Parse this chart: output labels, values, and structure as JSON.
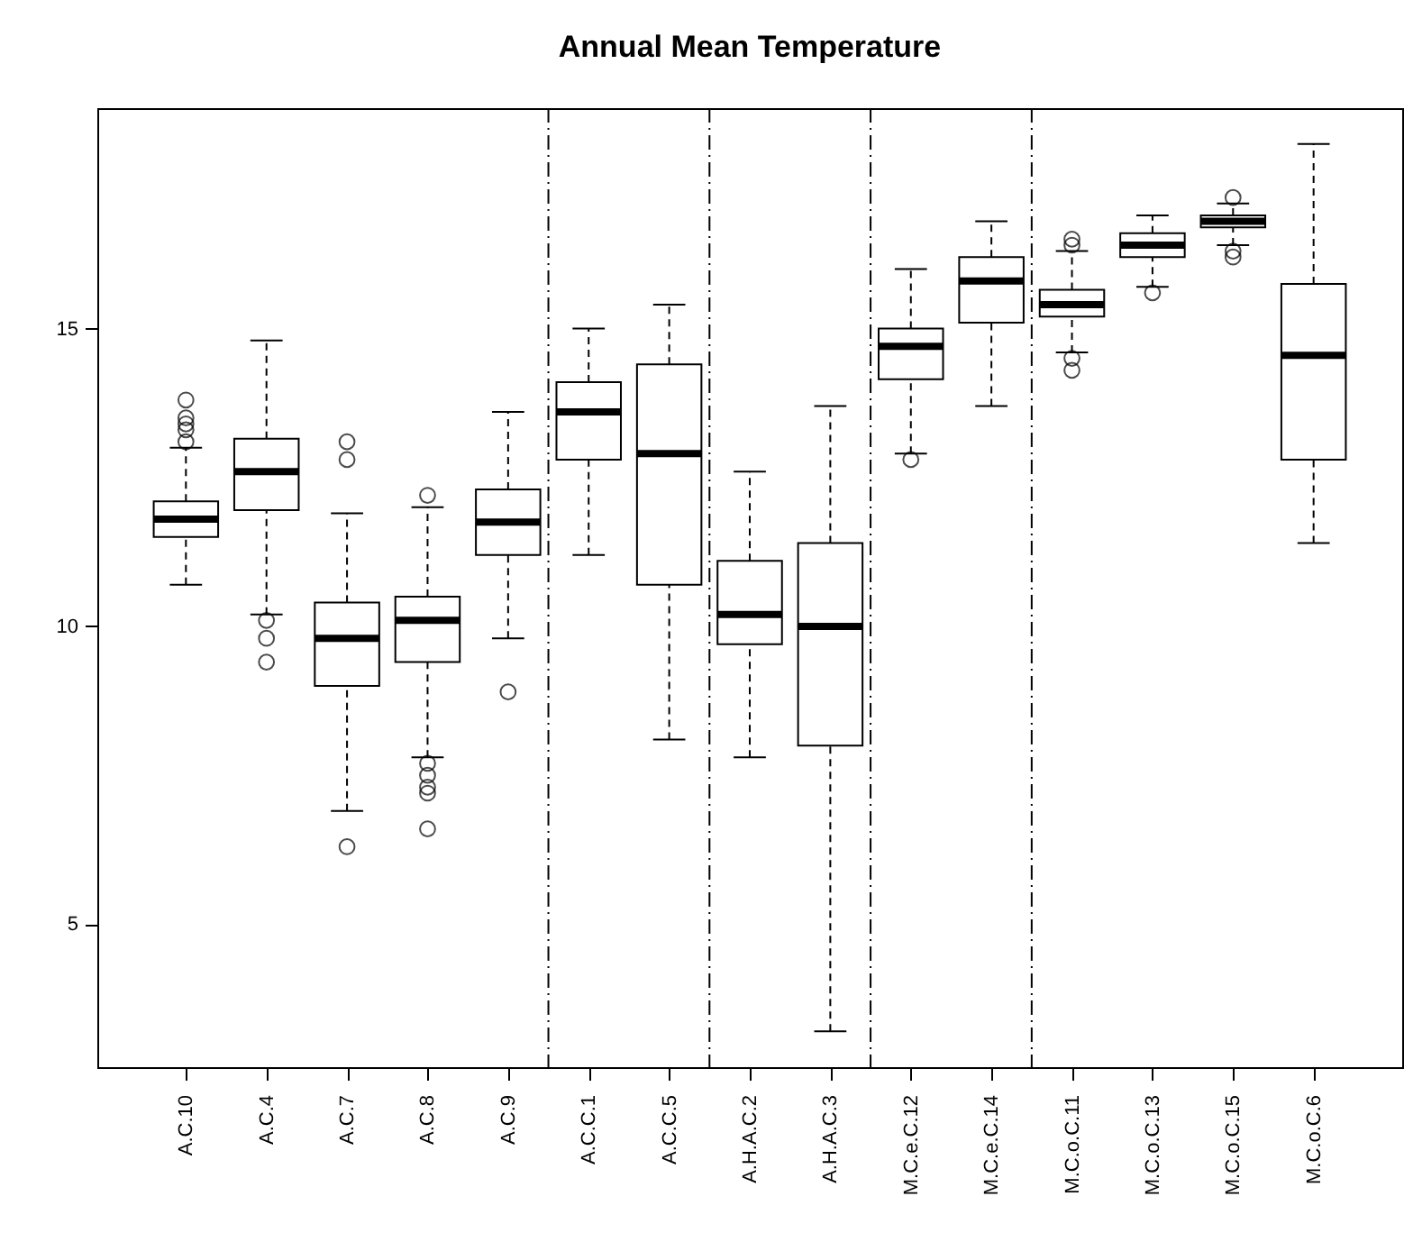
{
  "chart_data": {
    "type": "box",
    "title": "Annual Mean Temperature",
    "categories": [
      "A.C.10",
      "A.C.4",
      "A.C.7",
      "A.C.8",
      "A.C.9",
      "A.C.C.1",
      "A.C.C.5",
      "A.H.A.C.2",
      "A.H.A.C.3",
      "M.C.e.C.12",
      "M.C.e.C.14",
      "M.C.o.C.11",
      "M.C.o.C.13",
      "M.C.o.C.15",
      "M.C.o.C.6"
    ],
    "boxes": [
      {
        "low": 10.7,
        "q1": 11.5,
        "median": 11.8,
        "q3": 12.1,
        "high": 13.0,
        "outliers": [
          13.8,
          13.5,
          13.4,
          13.3,
          13.1
        ]
      },
      {
        "low": 10.2,
        "q1": 11.95,
        "median": 12.6,
        "q3": 13.15,
        "high": 14.8,
        "outliers": [
          10.1,
          9.8,
          9.4
        ]
      },
      {
        "low": 6.9,
        "q1": 9.0,
        "median": 9.8,
        "q3": 10.4,
        "high": 11.9,
        "outliers": [
          13.1,
          12.8,
          6.3
        ]
      },
      {
        "low": 7.8,
        "q1": 9.4,
        "median": 10.1,
        "q3": 10.5,
        "high": 12.0,
        "outliers": [
          12.2,
          7.7,
          7.5,
          7.3,
          7.2,
          6.6
        ]
      },
      {
        "low": 9.8,
        "q1": 11.2,
        "median": 11.75,
        "q3": 12.3,
        "high": 13.6,
        "outliers": [
          8.9
        ]
      },
      {
        "low": 11.2,
        "q1": 12.8,
        "median": 13.6,
        "q3": 14.1,
        "high": 15.0
      },
      {
        "low": 8.1,
        "q1": 10.7,
        "median": 12.9,
        "q3": 14.4,
        "high": 15.4
      },
      {
        "low": 7.8,
        "q1": 9.7,
        "median": 10.2,
        "q3": 11.1,
        "high": 12.6
      },
      {
        "low": 3.2,
        "q1": 8.0,
        "median": 10.0,
        "q3": 11.4,
        "high": 13.7
      },
      {
        "low": 12.9,
        "q1": 14.15,
        "median": 14.7,
        "q3": 15.0,
        "high": 16.0,
        "outliers": [
          12.8
        ]
      },
      {
        "low": 13.7,
        "q1": 15.1,
        "median": 15.8,
        "q3": 16.2,
        "high": 16.8
      },
      {
        "low": 14.6,
        "q1": 15.2,
        "median": 15.4,
        "q3": 15.65,
        "high": 16.3,
        "outliers": [
          16.5,
          16.4,
          14.5,
          14.3
        ]
      },
      {
        "low": 15.7,
        "q1": 16.2,
        "median": 16.4,
        "q3": 16.6,
        "high": 16.9,
        "outliers": [
          15.6
        ]
      },
      {
        "low": 16.4,
        "q1": 16.7,
        "median": 16.8,
        "q3": 16.9,
        "high": 17.1,
        "outliers": [
          17.2,
          16.3,
          16.2
        ]
      },
      {
        "low": 11.4,
        "q1": 12.8,
        "median": 14.55,
        "q3": 15.75,
        "high": 18.1
      }
    ],
    "ylim": [
      2.6,
      18.7
    ],
    "yticks": [
      5,
      10,
      15
    ],
    "grid": false
  }
}
